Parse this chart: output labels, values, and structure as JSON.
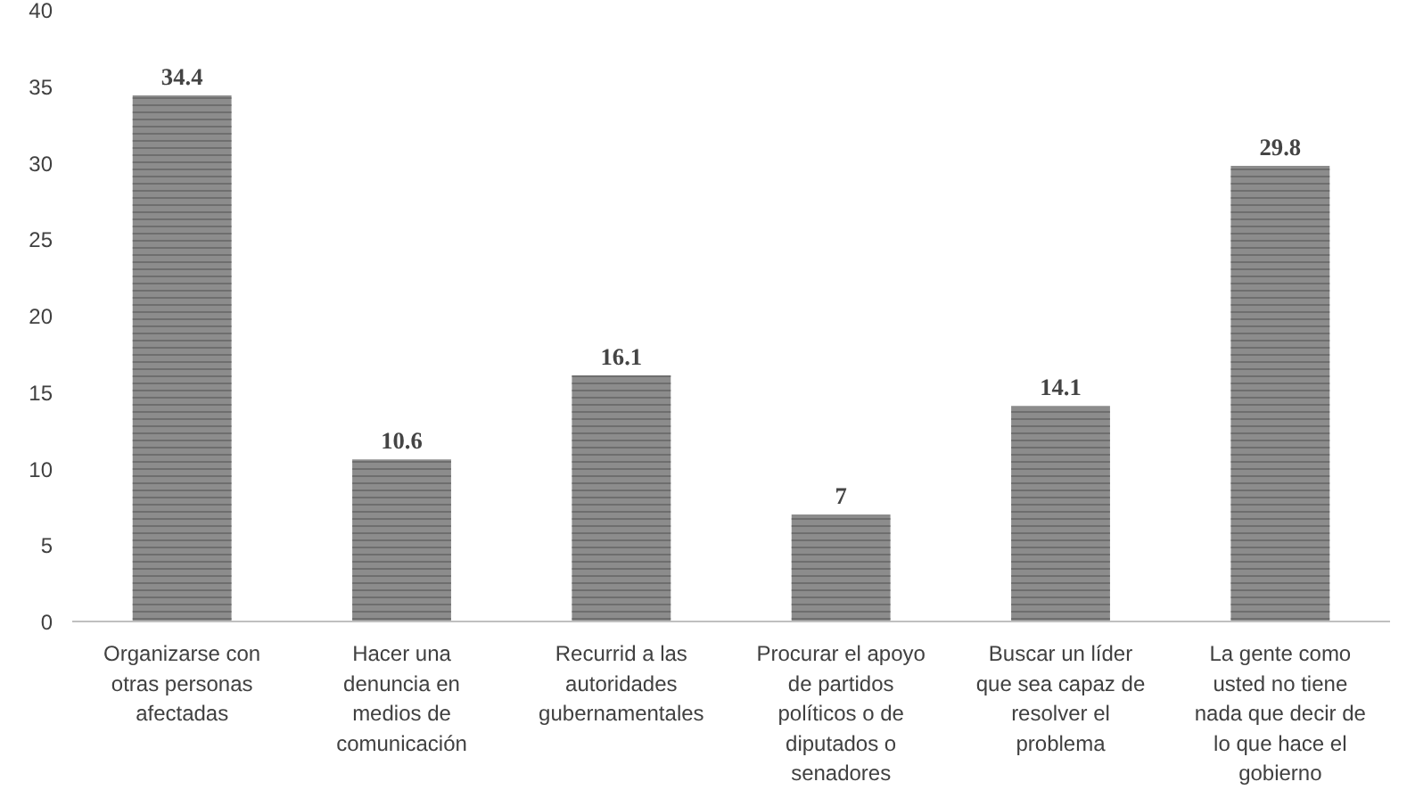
{
  "chart_data": {
    "type": "bar",
    "categories": [
      "Organizarse con otras personas afectadas",
      "Hacer una denuncia en medios de comunicación",
      "Recurrid a las autoridades gubernamentales",
      "Procurar el apoyo de partidos políticos o de diputados o senadores",
      "Buscar un líder que sea capaz de resolver el problema",
      "La gente como usted no tiene nada que decir de lo que hace el gobierno"
    ],
    "values": [
      34.4,
      10.6,
      16.1,
      7,
      14.1,
      29.8
    ],
    "color": "#8c8c8c",
    "ylim": [
      0,
      40
    ],
    "yticks": [
      0,
      5,
      10,
      15,
      20,
      25,
      30,
      35,
      40
    ],
    "grid": false,
    "data_labels": true
  }
}
